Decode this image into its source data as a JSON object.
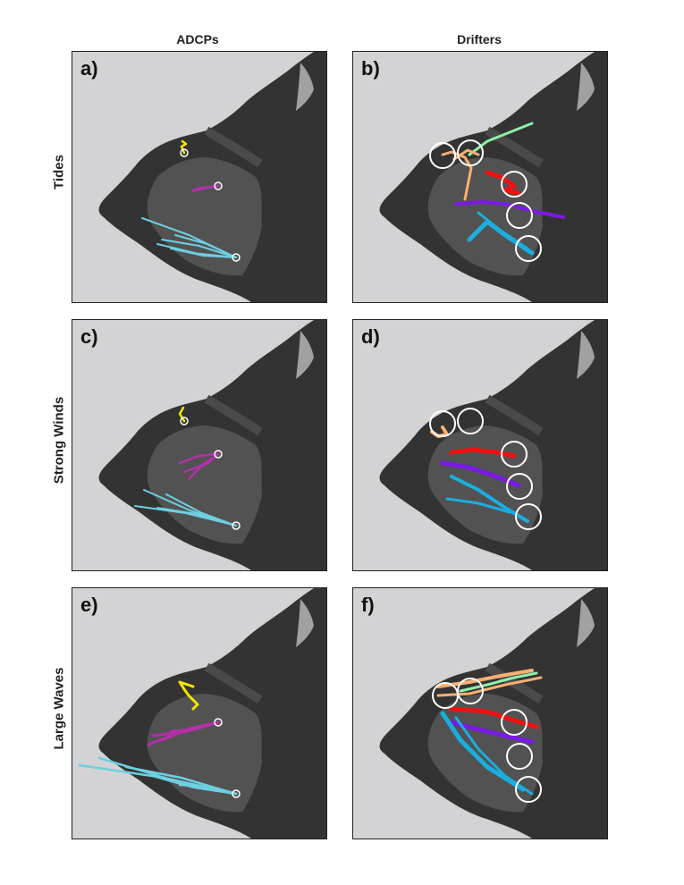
{
  "figure": {
    "column_titles": [
      "ADCPs",
      "Drifters"
    ],
    "row_titles": [
      "Tides",
      "Strong Winds",
      "Large Waves"
    ],
    "panels": [
      {
        "label": "a)",
        "row": "Tides",
        "column": "ADCPs"
      },
      {
        "label": "b)",
        "row": "Tides",
        "column": "Drifters"
      },
      {
        "label": "c)",
        "row": "Strong Winds",
        "column": "ADCPs"
      },
      {
        "label": "d)",
        "row": "Strong Winds",
        "column": "Drifters"
      },
      {
        "label": "e)",
        "row": "Large Waves",
        "column": "ADCPs"
      },
      {
        "label": "f)",
        "row": "Large Waves",
        "column": "Drifters"
      }
    ]
  },
  "colors": {
    "background": "#d3d3d5",
    "land_dark": "#333333",
    "reef_mid": "#555555",
    "adcp_yellow": "#f2e600",
    "adcp_magenta": "#b230a8",
    "adcp_cyan": "#6ecfe0",
    "drifter_orange": "#f9b072",
    "drifter_green": "#8ef0a8",
    "drifter_red": "#ef1111",
    "drifter_purple": "#7a1ae6",
    "drifter_blue": "#1aaee0",
    "release_circle": "#ffffff"
  }
}
